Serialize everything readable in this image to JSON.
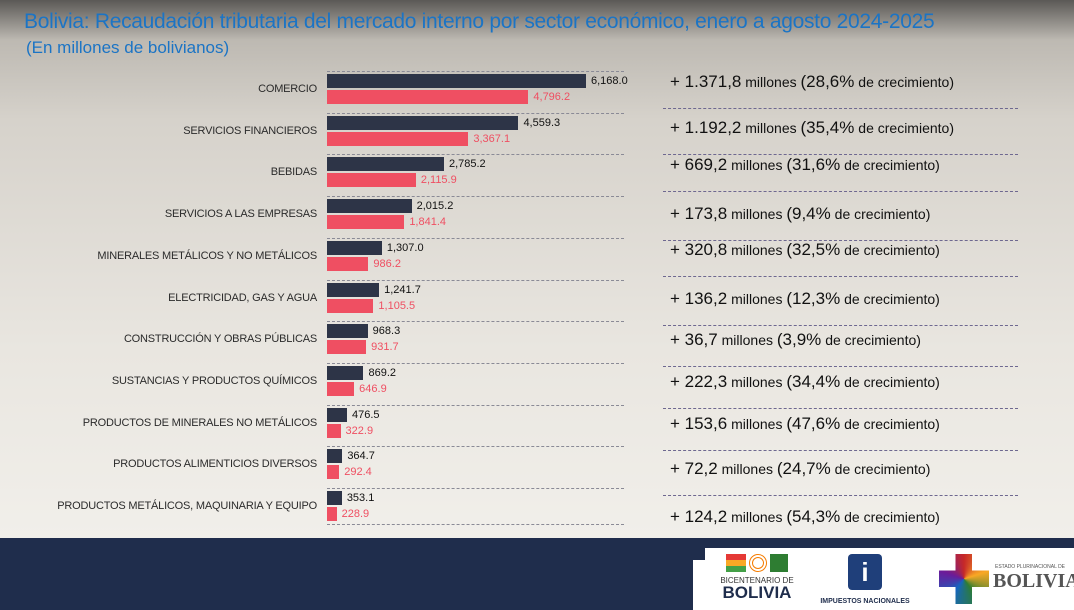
{
  "title": "Bolivia: Recaudación tributaria del mercado interno por sector económico, enero a agosto 2024-2025",
  "subtitle": "(En millones de bolivianos)",
  "chart_data": {
    "type": "bar",
    "orientation": "horizontal",
    "categories": [
      "COMERCIO",
      "SERVICIOS FINANCIEROS",
      "BEBIDAS",
      "SERVICIOS A LAS EMPRESAS",
      "MINERALES METÁLICOS Y NO METÁLICOS",
      "ELECTRICIDAD, GAS Y AGUA",
      "CONSTRUCCIÓN Y OBRAS PÚBLICAS",
      "SUSTANCIAS Y PRODUCTOS QUÍMICOS",
      "PRODUCTOS DE MINERALES NO METÁLICOS",
      "PRODUCTOS ALIMENTICIOS DIVERSOS",
      "PRODUCTOS METÁLICOS, MAQUINARIA Y EQUIPO"
    ],
    "series": [
      {
        "color": "#2d3447",
        "values": [
          6168.0,
          4559.3,
          2785.2,
          2015.2,
          1307.0,
          1241.7,
          968.3,
          869.2,
          476.5,
          364.7,
          353.1
        ],
        "labels": [
          "6,168.0",
          "4,559.3",
          "2,785.2",
          "2,015.2",
          "1,307.0",
          "1,241.7",
          "968.3",
          "869.2",
          "476.5",
          "364.7",
          "353.1"
        ]
      },
      {
        "color": "#ef4f62",
        "values": [
          4796.2,
          3367.1,
          2115.9,
          1841.4,
          986.2,
          1105.5,
          931.7,
          646.9,
          322.9,
          292.4,
          228.9
        ],
        "labels": [
          "4,796.2",
          "3,367.1",
          "2,115.9",
          "1,841.4",
          "986.2",
          "1,105.5",
          "931.7",
          "646.9",
          "322.9",
          "292.4",
          "228.9"
        ]
      }
    ],
    "grid": "dashed row separators",
    "legend": "none"
  },
  "growth": [
    {
      "amount": "+ 1.371,8",
      "pct": "(28,6%"
    },
    {
      "amount": "+ 1.192,2",
      "pct": "(35,4%"
    },
    {
      "amount": "+ 669,2",
      "pct": "(31,6%"
    },
    {
      "amount": "+ 173,8",
      "pct": "(9,4%"
    },
    {
      "amount": "+ 320,8",
      "pct": "(32,5%"
    },
    {
      "amount": "+ 136,2",
      "pct": "(12,3%"
    },
    {
      "amount": "+ 36,7",
      "pct": "(3,9%"
    },
    {
      "amount": "+ 222,3",
      "pct": "(34,4%"
    },
    {
      "amount": "+ 153,6",
      "pct": "(47,6%"
    },
    {
      "amount": "+ 72,2",
      "pct": "(24,7%"
    },
    {
      "amount": "+ 124,2",
      "pct": "(54,3%"
    }
  ],
  "growth_words": {
    "millones": " millones ",
    "suffix": " de crecimiento)"
  },
  "logos": {
    "bicentenario": {
      "line1": "BICENTENARIO DE",
      "line2": "BOLIVIA"
    },
    "impuestos": "IMPUESTOS NACIONALES",
    "estado": {
      "line1": "ESTADO PLURINACIONAL DE",
      "line2": "BOLIVIA"
    }
  }
}
